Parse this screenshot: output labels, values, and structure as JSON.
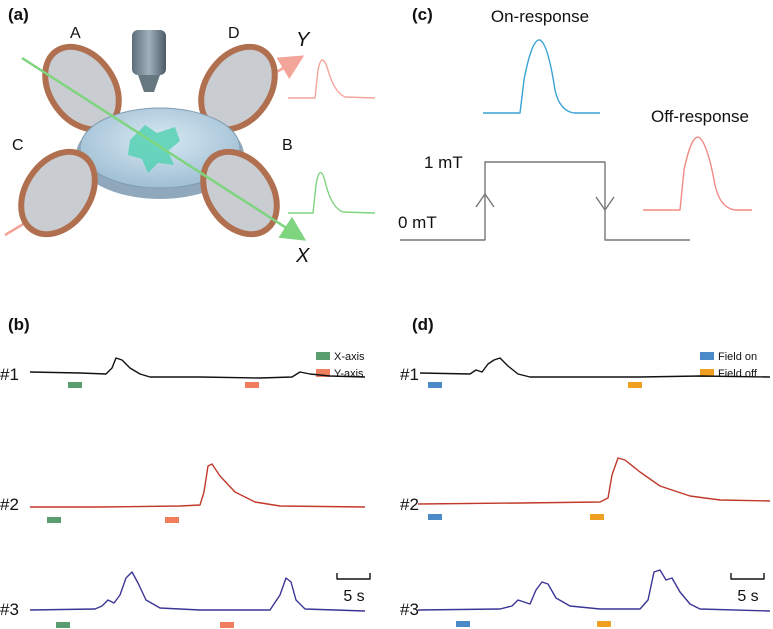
{
  "panels": [
    {
      "label": "(a)",
      "coil_labels": [
        "A",
        "B",
        "C",
        "D"
      ],
      "axis_labels": [
        "Y",
        "X"
      ]
    },
    {
      "label": "(b)",
      "legend": [
        "X-axis",
        "Y-axis"
      ],
      "traces": [
        "#1",
        "#2",
        "#3"
      ],
      "scale_bar": "5 s"
    },
    {
      "label": "(c)",
      "on_response": "On-response",
      "off_response": "Off-response",
      "levels": [
        "1 mT",
        "0 mT"
      ]
    },
    {
      "label": "(d)",
      "legend": [
        "Field on",
        "Field off"
      ],
      "traces": [
        "#1",
        "#2",
        "#3"
      ],
      "scale_bar": "5 s"
    }
  ]
}
